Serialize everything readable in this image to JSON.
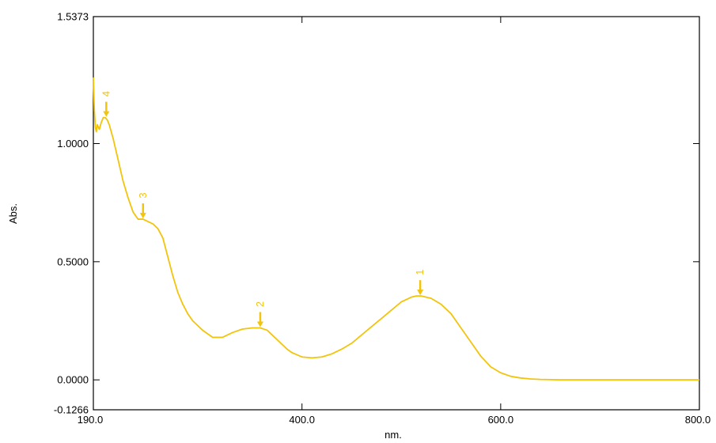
{
  "chart_data": {
    "type": "line",
    "xlabel": "nm.",
    "ylabel": "Abs.",
    "xlim": [
      190.0,
      800.0
    ],
    "ylim": [
      -0.1266,
      1.5373
    ],
    "x_ticks": [
      {
        "value": 190.0,
        "label": "190.0"
      },
      {
        "value": 400.0,
        "label": "400.0"
      },
      {
        "value": 600.0,
        "label": "600.0"
      },
      {
        "value": 800.0,
        "label": "800.0"
      }
    ],
    "y_ticks": [
      {
        "value": -0.1266,
        "label": "-0.1266"
      },
      {
        "value": 0.0,
        "label": "0.0000"
      },
      {
        "value": 0.5,
        "label": "0.5000"
      },
      {
        "value": 1.0,
        "label": "1.0000"
      },
      {
        "value": 1.5373,
        "label": "1.5373"
      }
    ],
    "grid": false,
    "series": [
      {
        "color": "#f2c40c",
        "x": [
          190,
          191,
          192,
          193,
          194,
          196,
          198,
          200,
          202,
          204,
          206,
          210,
          215,
          220,
          225,
          230,
          235,
          240,
          245,
          250,
          255,
          260,
          265,
          270,
          275,
          280,
          285,
          290,
          295,
          300,
          310,
          320,
          330,
          340,
          350,
          358,
          365,
          370,
          375,
          380,
          385,
          390,
          400,
          410,
          420,
          430,
          440,
          450,
          460,
          470,
          480,
          490,
          500,
          510,
          515,
          520,
          525,
          530,
          540,
          550,
          560,
          570,
          580,
          590,
          600,
          610,
          620,
          630,
          640,
          650,
          660,
          680,
          700,
          750,
          800
        ],
        "y": [
          1.28,
          1.14,
          1.07,
          1.05,
          1.08,
          1.06,
          1.09,
          1.11,
          1.11,
          1.1,
          1.08,
          1.02,
          0.93,
          0.84,
          0.77,
          0.71,
          0.68,
          0.68,
          0.67,
          0.66,
          0.64,
          0.6,
          0.52,
          0.44,
          0.37,
          0.32,
          0.28,
          0.25,
          0.23,
          0.21,
          0.18,
          0.18,
          0.2,
          0.215,
          0.22,
          0.22,
          0.21,
          0.19,
          0.17,
          0.15,
          0.13,
          0.115,
          0.097,
          0.093,
          0.097,
          0.11,
          0.13,
          0.155,
          0.19,
          0.225,
          0.26,
          0.295,
          0.33,
          0.35,
          0.355,
          0.355,
          0.35,
          0.345,
          0.32,
          0.28,
          0.22,
          0.16,
          0.1,
          0.055,
          0.03,
          0.015,
          0.008,
          0.004,
          0.002,
          0.001,
          0.0,
          0.0,
          0.0,
          0.0,
          0.0
        ]
      }
    ],
    "peaks": [
      {
        "label": "1",
        "x": 519,
        "y": 0.355
      },
      {
        "label": "2",
        "x": 358,
        "y": 0.22
      },
      {
        "label": "3",
        "x": 240,
        "y": 0.68
      },
      {
        "label": "4",
        "x": 203,
        "y": 1.11
      }
    ],
    "peak_color": "#f2c40c"
  }
}
